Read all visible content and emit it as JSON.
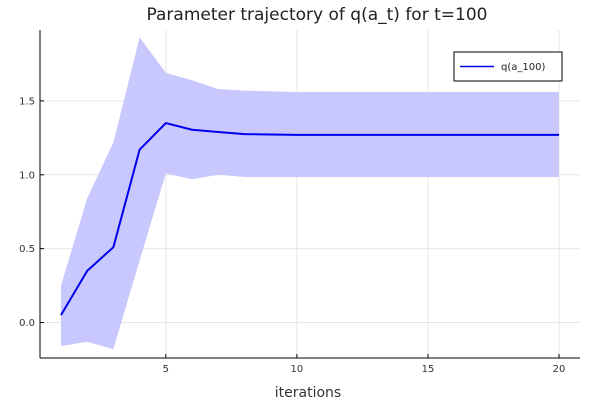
{
  "chart_data": {
    "type": "line",
    "title": "Parameter trajectory of q(a_t) for t=100",
    "xlabel": "iterations",
    "ylabel": "",
    "xlim": [
      0.2,
      20.8
    ],
    "ylim": [
      -0.24,
      1.98
    ],
    "x_ticks": [
      5,
      10,
      15,
      20
    ],
    "y_ticks": [
      0.0,
      0.5,
      1.0,
      1.5
    ],
    "x_tick_labels": [
      "5",
      "10",
      "15",
      "20"
    ],
    "y_tick_labels": [
      "0.0",
      "0.5",
      "1.0",
      "1.5"
    ],
    "grid": true,
    "legend_position": "top-right",
    "series": [
      {
        "name": "q(a_100)",
        "color": "#0000ee",
        "band_color": "#c8c8ff",
        "x": [
          1,
          2,
          3,
          4,
          5,
          6,
          7,
          8,
          9,
          10,
          11,
          12,
          13,
          14,
          15,
          16,
          17,
          18,
          19,
          20
        ],
        "y": [
          0.05,
          0.35,
          0.51,
          1.17,
          1.35,
          1.305,
          1.29,
          1.275,
          1.273,
          1.27,
          1.27,
          1.27,
          1.27,
          1.27,
          1.27,
          1.27,
          1.27,
          1.27,
          1.27,
          1.27
        ],
        "lower": [
          -0.16,
          -0.13,
          -0.18,
          0.42,
          1.01,
          0.97,
          1.0,
          0.985,
          0.985,
          0.985,
          0.985,
          0.985,
          0.985,
          0.985,
          0.985,
          0.985,
          0.985,
          0.985,
          0.985,
          0.985
        ],
        "upper": [
          0.25,
          0.84,
          1.22,
          1.93,
          1.69,
          1.64,
          1.58,
          1.57,
          1.565,
          1.56,
          1.56,
          1.56,
          1.56,
          1.56,
          1.56,
          1.56,
          1.56,
          1.56,
          1.56,
          1.56
        ]
      }
    ]
  }
}
